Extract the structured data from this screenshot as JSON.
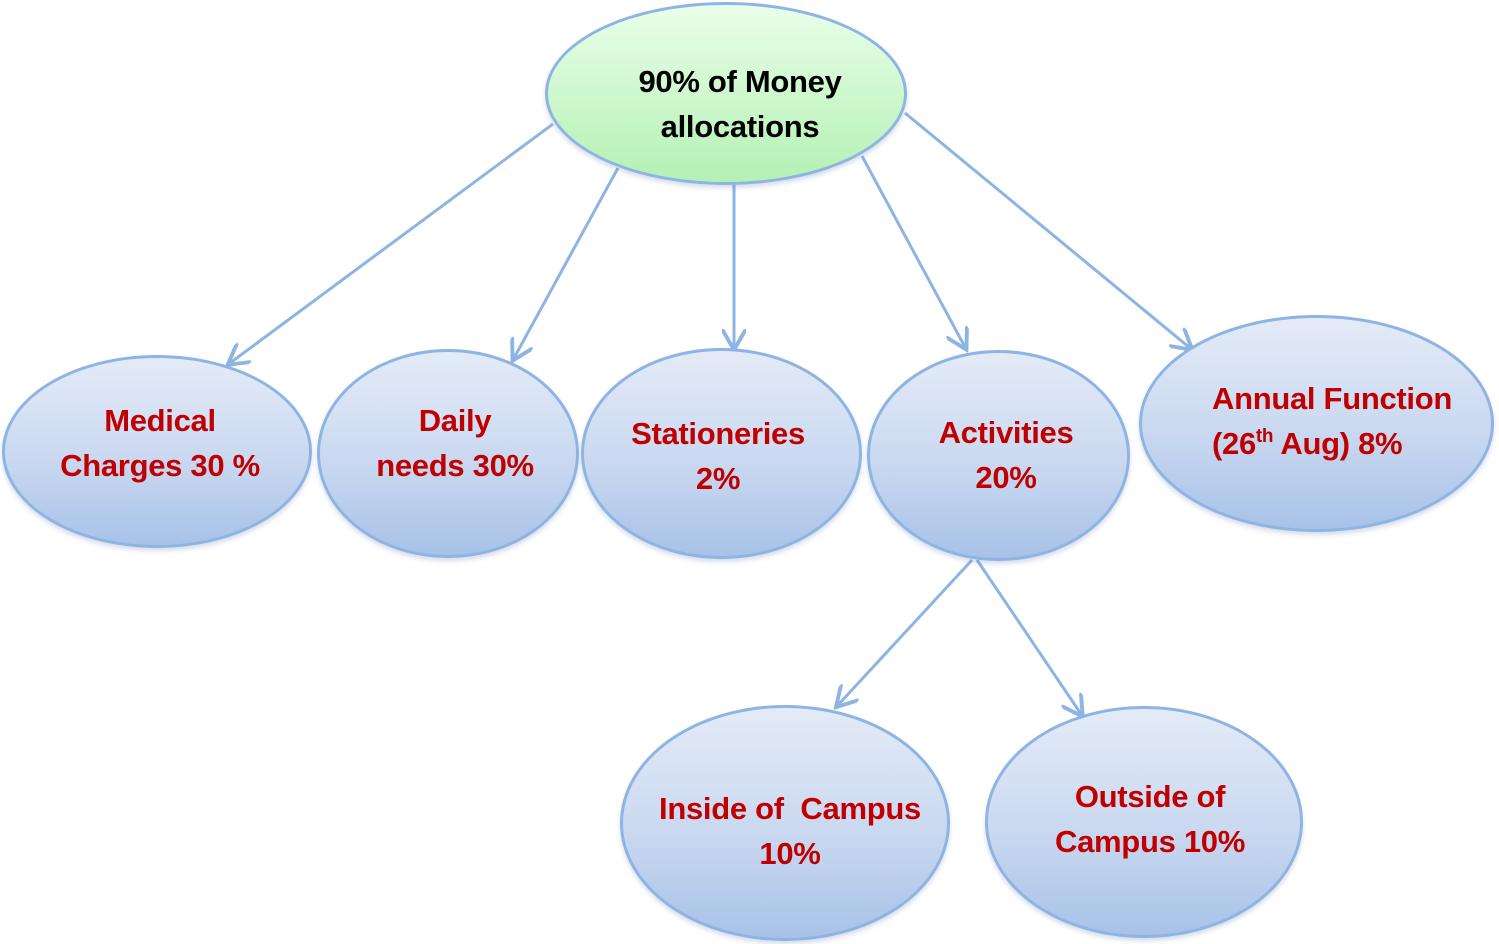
{
  "colors": {
    "connector": "#8eb4e3",
    "node_border": "#8eb4e3",
    "node_fill": "#c9d8f0",
    "root_fill": "#ccf7cc",
    "label_text": "#c00000",
    "root_text": "#000000"
  },
  "root": {
    "line1": "90% of Money",
    "line2": "allocations"
  },
  "categories": {
    "medical": {
      "line1": "Medical",
      "line2": "Charges 30 %"
    },
    "daily": {
      "line1": "Daily",
      "line2": "needs 30%"
    },
    "stationeries": {
      "line1": "Stationeries",
      "line2": "2%"
    },
    "activities": {
      "line1": "Activities",
      "line2": "20%"
    },
    "annual": {
      "line1": "Annual Function",
      "line2_prefix": "(26",
      "line2_sup": "th",
      "line2_suffix": " Aug) 8%"
    }
  },
  "activities_breakdown": {
    "inside": {
      "line1": "Inside of  Campus",
      "line2": "10%"
    },
    "outside": {
      "line1": "Outside of",
      "line2": "Campus 10%"
    }
  }
}
